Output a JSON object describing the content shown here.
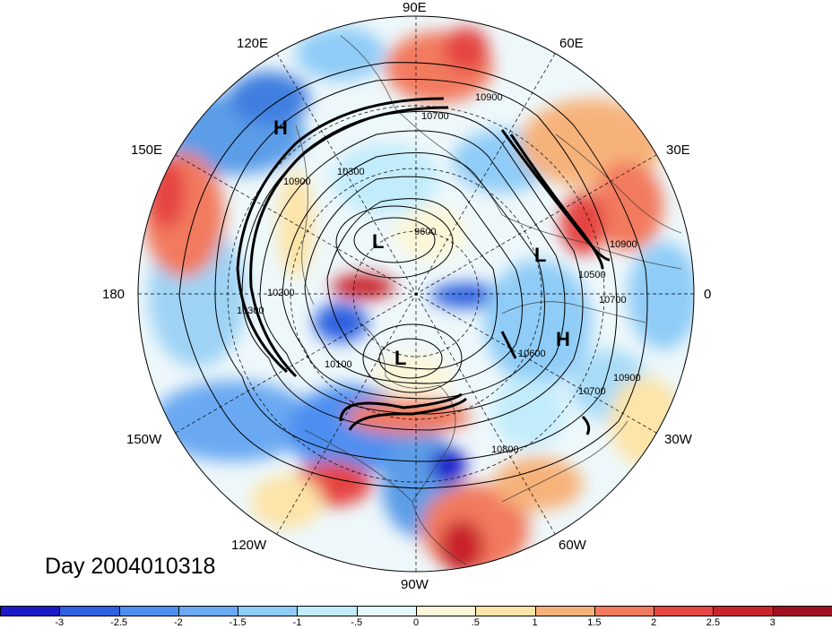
{
  "title": "Day 2004010318",
  "lon_labels": [
    "90E",
    "60E",
    "30E",
    "0",
    "30W",
    "60W",
    "90W",
    "120W",
    "150W",
    "180",
    "150E",
    "120E"
  ],
  "pressure_centers": [
    "H",
    "L",
    "L",
    "L",
    "H"
  ],
  "contour_labels": [
    "10700",
    "10900",
    "10900",
    "10900",
    "10700",
    "10600",
    "10500",
    "10700",
    "10800",
    "10900",
    "10200",
    "10300",
    "9600",
    "10100",
    "10300"
  ],
  "colorbar": {
    "ticks": [
      "-3",
      "-2.5",
      "-2",
      "-1.5",
      "-1",
      "-.5",
      "0",
      ".5",
      "1",
      "1.5",
      "2",
      "2.5",
      "3"
    ],
    "colors": [
      "#1a1ac8",
      "#2f62e0",
      "#4d8ff0",
      "#6aa9f2",
      "#8fccf7",
      "#c2ecfb",
      "#e6f8fd",
      "#fdf6d8",
      "#fde4a8",
      "#f7b27a",
      "#f27a5e",
      "#e54543",
      "#c8242c",
      "#a01020"
    ]
  },
  "map_data": {
    "projection": "north-polar-stereographic",
    "field_range": [
      -3.5,
      3.5
    ],
    "units_shown": "none"
  }
}
